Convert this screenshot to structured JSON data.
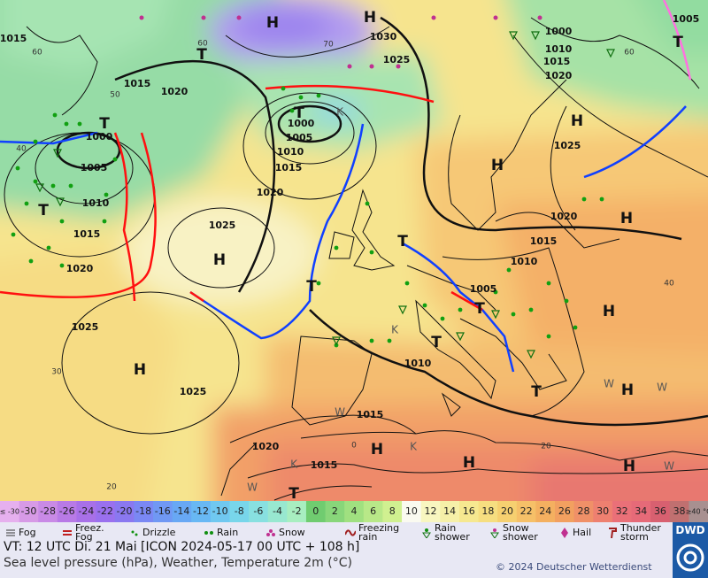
{
  "map": {
    "isobar_labels": [
      "1015",
      "1015",
      "1020",
      "1000",
      "1005",
      "1010",
      "1015",
      "1020",
      "1025",
      "1025",
      "1025",
      "1020",
      "1015",
      "1010",
      "1005",
      "1000",
      "1030",
      "1025",
      "1000",
      "1010",
      "1015",
      "1020",
      "1025",
      "1020",
      "1015",
      "1010",
      "1005",
      "1010",
      "1015",
      "1020",
      "1015",
      "1005"
    ],
    "centers": [
      "H",
      "H",
      "T",
      "T",
      "T",
      "H",
      "H",
      "T",
      "H",
      "H",
      "T",
      "T",
      "T",
      "H",
      "T",
      "H",
      "H",
      "T",
      "H",
      "H",
      "H",
      "T",
      "T"
    ],
    "temperature_labels": [
      "60",
      "60",
      "70",
      "50",
      "40",
      "60",
      "40",
      "30",
      "20",
      "20",
      "0"
    ],
    "other_labels": [
      "K",
      "K",
      "K",
      "K",
      "W",
      "W",
      "W",
      "W",
      "W"
    ]
  },
  "colorbar": {
    "labels": [
      "≤ -30",
      "-30",
      "-28",
      "-26",
      "-24",
      "-22",
      "-20",
      "-18",
      "-16",
      "-14",
      "-12",
      "-10",
      "-8",
      "-6",
      "-4",
      "-2",
      "0",
      "2",
      "4",
      "6",
      "8",
      "10",
      "12",
      "14",
      "16",
      "18",
      "20",
      "22",
      "24",
      "26",
      "28",
      "30",
      "32",
      "34",
      "36",
      "38",
      "≥40 °C"
    ],
    "colors": [
      "#e6b0ee",
      "#d79ae6",
      "#c98ae6",
      "#b87ae6",
      "#a870e8",
      "#9a70ee",
      "#8a78f0",
      "#7a88f4",
      "#7098f4",
      "#68a8f4",
      "#68b8f4",
      "#70c8f0",
      "#78d6ea",
      "#88e0e0",
      "#98e8d0",
      "#a8eec0",
      "#70cc70",
      "#88d67a",
      "#a0e080",
      "#b8e888",
      "#d0f090",
      "#fafaf0",
      "#f8f6c0",
      "#f6f0a8",
      "#f6e890",
      "#f6de80",
      "#f6d070",
      "#f6c068",
      "#f4b060",
      "#f2a060",
      "#f09068",
      "#ee8070",
      "#ea7078",
      "#e66a78",
      "#d86070",
      "#c07070",
      "#a89090"
    ]
  },
  "legend": [
    "Fog",
    "Freez. Fog",
    "Drizzle",
    "Rain",
    "Snow",
    "Freezing rain",
    "Rain shower",
    "Snow shower",
    "Hail",
    "Thunder storm"
  ],
  "footer": {
    "valid_time": "VT: 12 UTC Di.  21 Mai [ICON 2024-05-17  00 UTC + 108 h]",
    "description": "Sea level pressure (hPa), Weather, Temperature 2m (°C)",
    "copyright": "© 2024 Deutscher Wetterdienst",
    "logo": "DWD"
  }
}
